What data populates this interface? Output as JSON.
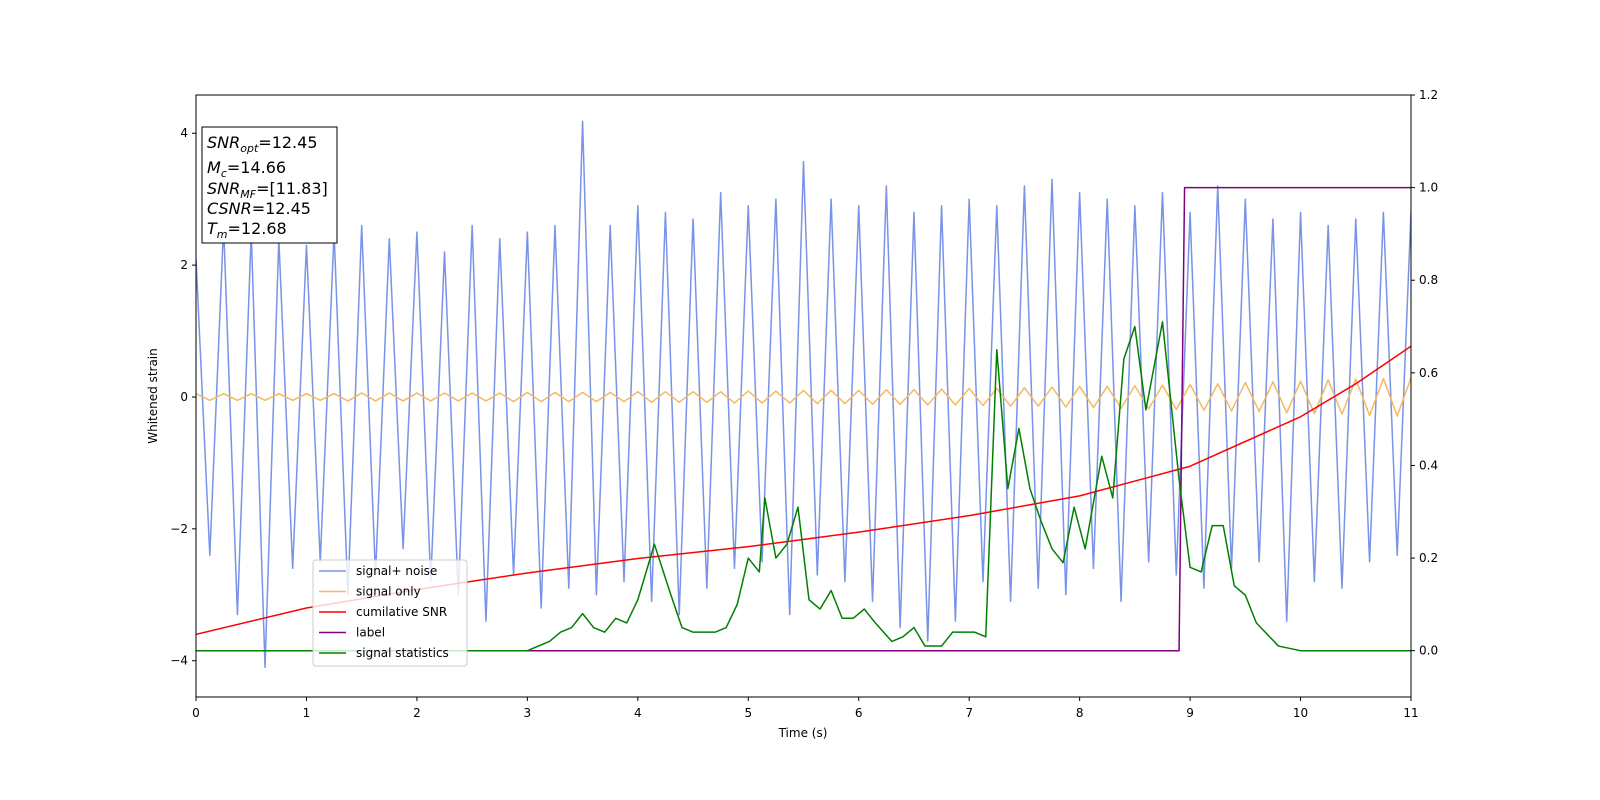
{
  "chart_data": {
    "type": "line",
    "xlabel": "Time (s)",
    "ylabel": "Whitened strain",
    "xlim": [
      0,
      11
    ],
    "xticks": [
      0,
      1,
      2,
      3,
      4,
      5,
      6,
      7,
      8,
      9,
      10,
      11
    ],
    "ylim": [
      -4.55,
      4.58
    ],
    "yticks": [
      {
        "value": -4,
        "label": "−4"
      },
      {
        "value": -2,
        "label": "−2"
      },
      0,
      2,
      4
    ],
    "y2lim": [
      -0.1,
      1.2
    ],
    "y2ticks": [
      {
        "value": 0,
        "label": "0.0"
      },
      {
        "value": 0.2,
        "label": "0.2"
      },
      {
        "value": 0.4,
        "label": "0.4"
      },
      {
        "value": 0.6,
        "label": "0.6"
      },
      {
        "value": 0.8,
        "label": "0.8"
      },
      {
        "value": 1,
        "label": "1.0"
      },
      {
        "value": 1.2,
        "label": "1.2"
      }
    ],
    "annotations": [
      {
        "main": "SNR",
        "sub": "opt",
        "rest": "=12.45"
      },
      {
        "main": "M",
        "sub": "c",
        "rest": "=14.66"
      },
      {
        "main": "SNR",
        "sub": "MF",
        "rest": "=[11.83]"
      },
      {
        "main": "CSNR",
        "sub": "",
        "rest": "=12.45"
      },
      {
        "main": "T",
        "sub": "m",
        "rest": "=12.68"
      }
    ],
    "x": [
      0,
      0.125,
      0.25,
      0.375,
      0.5,
      0.625,
      0.75,
      0.875,
      1,
      1.125,
      1.25,
      1.375,
      1.5,
      1.625,
      1.75,
      1.875,
      2,
      2.125,
      2.25,
      2.375,
      2.5,
      2.625,
      2.75,
      2.875,
      3,
      3.125,
      3.25,
      3.375,
      3.5,
      3.625,
      3.75,
      3.875,
      4,
      4.125,
      4.25,
      4.375,
      4.5,
      4.625,
      4.75,
      4.875,
      5,
      5.125,
      5.25,
      5.375,
      5.5,
      5.625,
      5.75,
      5.875,
      6,
      6.125,
      6.25,
      6.375,
      6.5,
      6.625,
      6.75,
      6.875,
      7,
      7.125,
      7.25,
      7.375,
      7.5,
      7.625,
      7.75,
      7.875,
      8,
      8.125,
      8.25,
      8.375,
      8.5,
      8.625,
      8.75,
      8.875,
      9,
      9.125,
      9.25,
      9.375,
      9.5,
      9.625,
      9.75,
      9.875,
      10,
      10.125,
      10.25,
      10.375,
      10.5,
      10.625,
      10.75,
      10.875,
      11
    ],
    "series": [
      {
        "name": "signal+ noise",
        "color": "#7893e8",
        "values": [
          2.1,
          -2.4,
          2.6,
          -3.3,
          2.5,
          -4.1,
          2.4,
          -2.6,
          2.3,
          -2.5,
          2.5,
          -3.0,
          2.6,
          -2.7,
          2.4,
          -2.3,
          2.5,
          -2.8,
          2.2,
          -3.0,
          2.6,
          -3.4,
          2.4,
          -2.7,
          2.5,
          -3.2,
          2.6,
          -2.9,
          4.18,
          -3.0,
          2.6,
          -2.8,
          2.9,
          -3.1,
          2.8,
          -3.3,
          2.7,
          -2.9,
          3.1,
          -2.6,
          2.9,
          -2.5,
          3.0,
          -3.3,
          3.57,
          -2.7,
          3.0,
          -2.8,
          2.9,
          -3.1,
          3.2,
          -3.5,
          2.8,
          -3.7,
          2.9,
          -3.4,
          3.0,
          -2.8,
          2.9,
          -3.1,
          3.2,
          -2.9,
          3.3,
          -3.0,
          3.1,
          -2.6,
          3.0,
          -3.1,
          2.9,
          -2.5,
          3.1,
          -2.7,
          2.8,
          -2.9,
          3.2,
          -2.6,
          3.0,
          -2.5,
          2.7,
          -3.4,
          2.8,
          -2.8,
          2.6,
          -2.9,
          2.7,
          -2.5,
          2.8,
          -2.4,
          2.8
        ]
      },
      {
        "name": "signal only",
        "color": "#f5b95f",
        "values": [
          0.05,
          -0.05,
          0.05,
          -0.05,
          0.05,
          -0.05,
          0.05,
          -0.05,
          0.05,
          -0.05,
          0.05,
          -0.06,
          0.06,
          -0.06,
          0.06,
          -0.06,
          0.06,
          -0.06,
          0.06,
          -0.06,
          0.06,
          -0.06,
          0.06,
          -0.07,
          0.07,
          -0.07,
          0.07,
          -0.07,
          0.07,
          -0.07,
          0.07,
          -0.07,
          0.08,
          -0.08,
          0.08,
          -0.08,
          0.08,
          -0.08,
          0.08,
          -0.09,
          0.09,
          -0.09,
          0.09,
          -0.09,
          0.1,
          -0.1,
          0.1,
          -0.1,
          0.1,
          -0.11,
          0.11,
          -0.11,
          0.11,
          -0.12,
          0.12,
          -0.12,
          0.13,
          -0.13,
          0.13,
          -0.14,
          0.14,
          -0.14,
          0.15,
          -0.15,
          0.16,
          -0.16,
          0.16,
          -0.17,
          0.17,
          -0.18,
          0.18,
          -0.19,
          0.19,
          -0.2,
          0.2,
          -0.21,
          0.22,
          -0.22,
          0.23,
          -0.24,
          0.24,
          -0.25,
          0.26,
          -0.26,
          0.27,
          -0.28,
          0.28,
          -0.29,
          0.29
        ]
      },
      {
        "name": "cumilative SNR",
        "color": "#ff0000",
        "x": [
          0,
          1,
          2,
          3,
          4,
          5,
          6,
          7,
          8,
          9,
          10,
          10.5,
          11
        ],
        "values": [
          -3.6,
          -3.2,
          -2.92,
          -2.67,
          -2.45,
          -2.27,
          -2.05,
          -1.8,
          -1.5,
          -1.05,
          -0.3,
          0.2,
          0.77
        ]
      },
      {
        "name": "label",
        "color": "#800080",
        "axis": "y2",
        "x": [
          0,
          8.9,
          8.95,
          11
        ],
        "values": [
          0,
          0,
          1,
          1
        ]
      },
      {
        "name": "signal statistics",
        "color": "#008000",
        "axis": "y2",
        "x": [
          0,
          3.0,
          3.2,
          3.3,
          3.4,
          3.5,
          3.6,
          3.7,
          3.8,
          3.9,
          4.0,
          4.15,
          4.3,
          4.4,
          4.5,
          4.7,
          4.8,
          4.9,
          5.0,
          5.1,
          5.15,
          5.25,
          5.35,
          5.45,
          5.55,
          5.65,
          5.75,
          5.85,
          5.95,
          6.05,
          6.15,
          6.3,
          6.4,
          6.5,
          6.6,
          6.75,
          6.85,
          6.95,
          7.05,
          7.15,
          7.25,
          7.35,
          7.45,
          7.55,
          7.65,
          7.75,
          7.85,
          7.95,
          8.05,
          8.2,
          8.3,
          8.4,
          8.5,
          8.6,
          8.75,
          8.9,
          9.0,
          9.1,
          9.2,
          9.3,
          9.4,
          9.5,
          9.6,
          9.8,
          10.0,
          11
        ],
        "values": [
          0,
          0,
          0.02,
          0.04,
          0.05,
          0.08,
          0.05,
          0.04,
          0.07,
          0.06,
          0.11,
          0.23,
          0.12,
          0.05,
          0.04,
          0.04,
          0.05,
          0.1,
          0.2,
          0.17,
          0.33,
          0.2,
          0.23,
          0.31,
          0.11,
          0.09,
          0.13,
          0.07,
          0.07,
          0.09,
          0.06,
          0.02,
          0.03,
          0.05,
          0.01,
          0.01,
          0.04,
          0.04,
          0.04,
          0.03,
          0.65,
          0.35,
          0.48,
          0.35,
          0.28,
          0.22,
          0.19,
          0.31,
          0.22,
          0.42,
          0.33,
          0.63,
          0.7,
          0.52,
          0.71,
          0.37,
          0.18,
          0.17,
          0.27,
          0.27,
          0.14,
          0.12,
          0.06,
          0.01,
          0,
          0
        ]
      }
    ]
  }
}
